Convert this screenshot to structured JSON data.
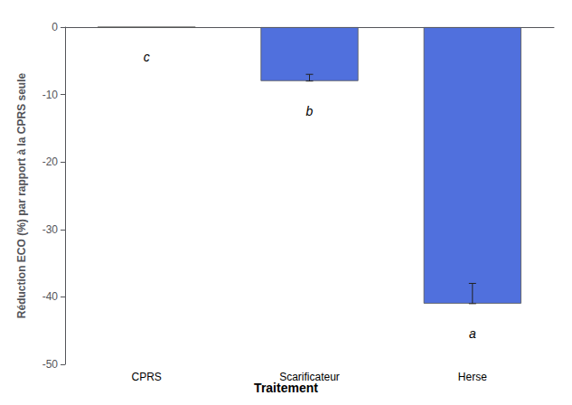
{
  "chart_data": {
    "type": "bar",
    "categories": [
      "CPRS",
      "Scarificateur",
      "Herse"
    ],
    "values": [
      0,
      -8.0,
      -41.0
    ],
    "errors": [
      0,
      1.0,
      3.0
    ],
    "significance": [
      "c",
      "b",
      "a"
    ],
    "xlabel": "Traitement",
    "ylabel": "Réduction ECO (%) par rapport à la CPRS seule",
    "ylim": [
      -50,
      0
    ],
    "yticks": [
      0,
      -10,
      -20,
      -30,
      -40,
      -50
    ],
    "grid": false
  }
}
